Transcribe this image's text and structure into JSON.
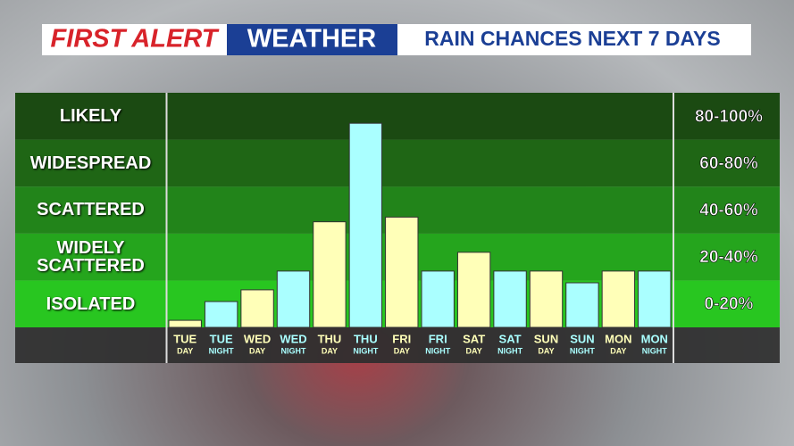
{
  "chart_data": {
    "type": "bar",
    "title": {
      "brand": "FIRST ALERT",
      "section": "WEATHER",
      "topic": "RAIN CHANCES NEXT 7 DAYS"
    },
    "categories": [
      "TUE",
      "TUE",
      "WED",
      "WED",
      "THU",
      "THU",
      "FRI",
      "FRI",
      "SAT",
      "SAT",
      "SUN",
      "SUN",
      "MON",
      "MON"
    ],
    "subcategories": [
      "DAY",
      "NIGHT",
      "DAY",
      "NIGHT",
      "DAY",
      "NIGHT",
      "DAY",
      "NIGHT",
      "DAY",
      "NIGHT",
      "DAY",
      "NIGHT",
      "DAY",
      "NIGHT"
    ],
    "values": [
      3,
      11,
      16,
      24,
      45,
      87,
      47,
      24,
      32,
      24,
      24,
      19,
      24,
      24
    ],
    "colors": [
      "#ffffb8",
      "#aaffff",
      "#ffffb8",
      "#aaffff",
      "#ffffb8",
      "#aaffff",
      "#ffffb8",
      "#aaffff",
      "#ffffb8",
      "#aaffff",
      "#ffffb8",
      "#aaffff",
      "#ffffb8",
      "#aaffff"
    ],
    "ylim": [
      0,
      100
    ],
    "bands": [
      {
        "name": "LIKELY",
        "range": "80-100%",
        "from": 80,
        "to": 100,
        "color": "#1b4a12"
      },
      {
        "name": "WIDESPREAD",
        "range": "60-80%",
        "from": 60,
        "to": 80,
        "color": "#1f6615"
      },
      {
        "name": "SCATTERED",
        "range": "40-60%",
        "from": 40,
        "to": 60,
        "color": "#22841a"
      },
      {
        "name": "WIDELY SCATTERED",
        "range": "20-40%",
        "from": 20,
        "to": 40,
        "color": "#25a51d"
      },
      {
        "name": "ISOLATED",
        "range": "0-20%",
        "from": 0,
        "to": 20,
        "color": "#28c620"
      }
    ]
  }
}
